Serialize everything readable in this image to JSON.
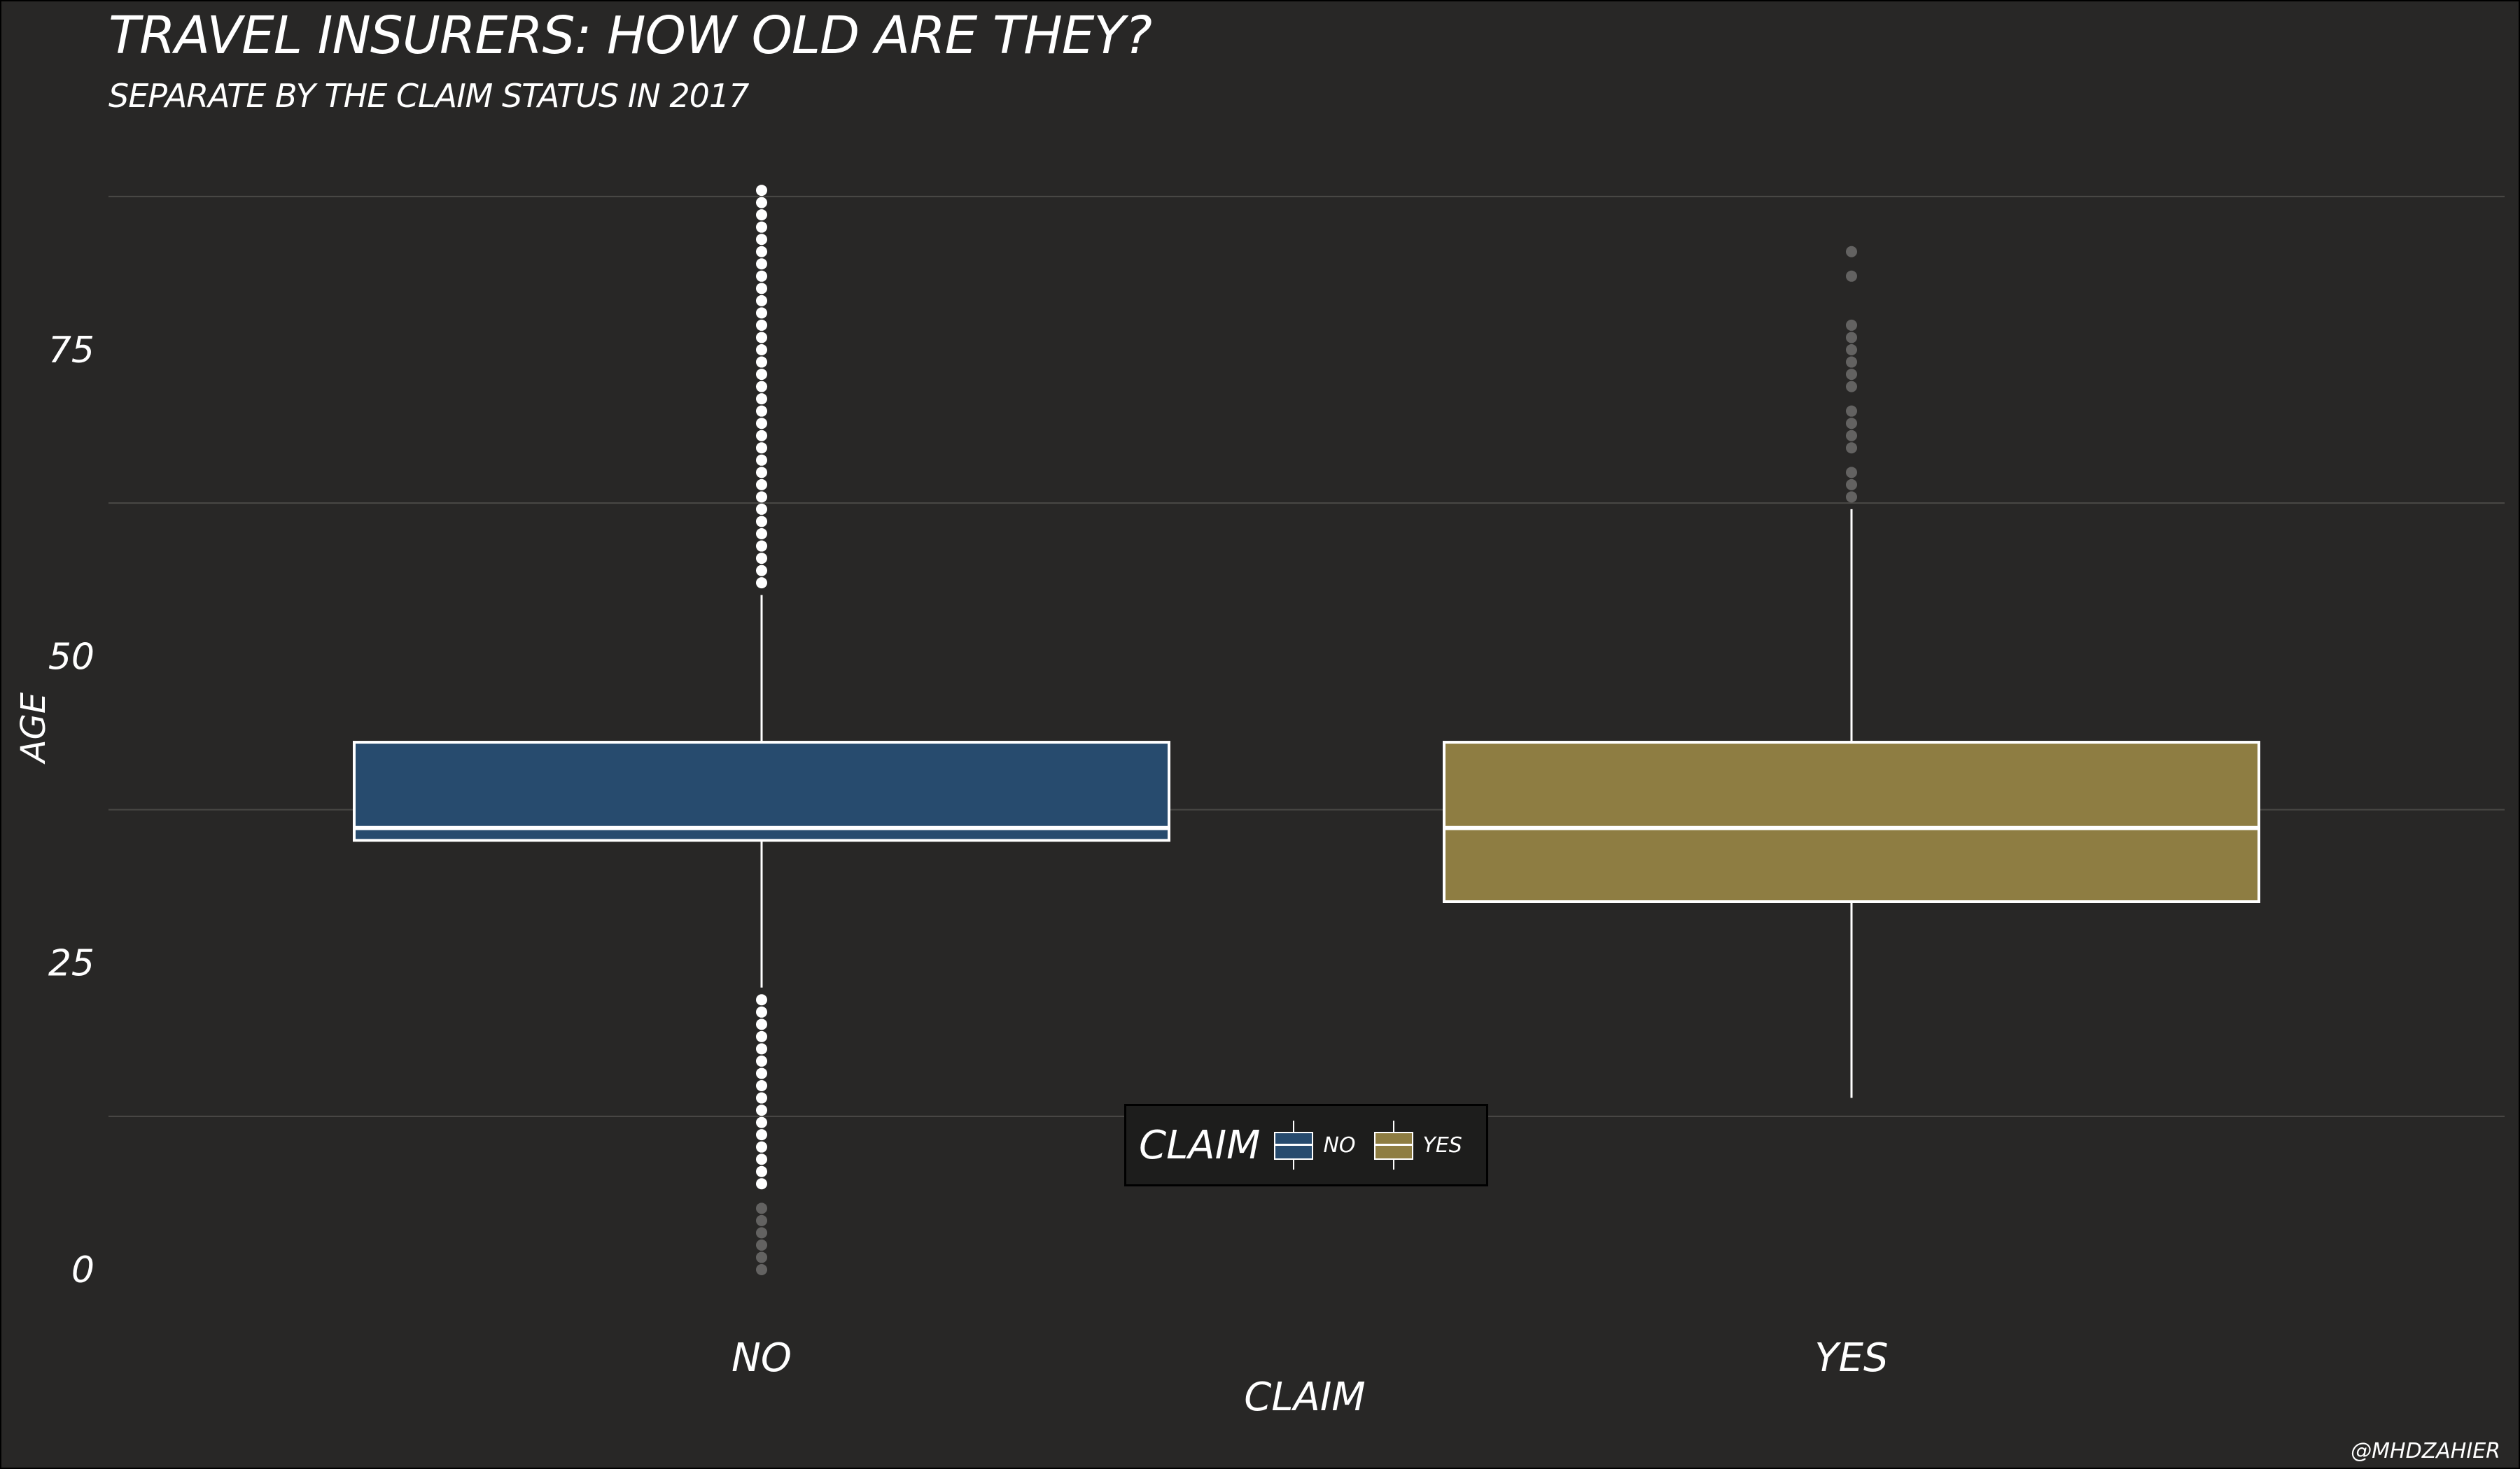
{
  "chart_data": {
    "type": "boxplot",
    "title": "Travel insurers: how old are they?",
    "subtitle": "Separate by the claim status in 2017",
    "xlabel": "CLAIM",
    "ylabel": "AGE",
    "caption": "@mhdzahier",
    "categories": [
      "NO",
      "YES"
    ],
    "legend": {
      "title": "CLAIM",
      "position": "bottom-center",
      "entries": [
        "no",
        "yes"
      ]
    },
    "ylim": [
      0,
      88
    ],
    "yticks": [
      0,
      25,
      50,
      75
    ],
    "grid": true,
    "colors": {
      "background": "#282726",
      "NO": "#274b6e",
      "YES": "#8e7d42",
      "grid": "#4a4946",
      "text": "#ffffff"
    },
    "boxes": [
      {
        "category": "NO",
        "min": 23,
        "q1": 35,
        "median": 36,
        "q3": 43,
        "max": 55,
        "outliers": [
          22,
          21,
          20,
          19,
          18,
          17,
          16,
          15,
          14,
          13,
          12,
          11,
          10,
          9,
          8,
          7,
          5,
          4,
          3,
          2,
          1,
          0,
          56,
          57,
          58,
          59,
          60,
          61,
          62,
          63,
          64,
          65,
          66,
          67,
          68,
          69,
          70,
          71,
          72,
          73,
          74,
          75,
          76,
          77,
          78,
          79,
          80,
          81,
          82,
          83,
          84,
          85,
          86,
          87,
          88
        ]
      },
      {
        "category": "YES",
        "min": 14,
        "q1": 30,
        "median": 36,
        "q3": 43,
        "max": 62,
        "outliers": [
          63,
          64,
          65,
          67,
          68,
          69,
          70,
          72,
          73,
          74,
          75,
          76,
          77,
          81,
          83
        ]
      }
    ]
  }
}
